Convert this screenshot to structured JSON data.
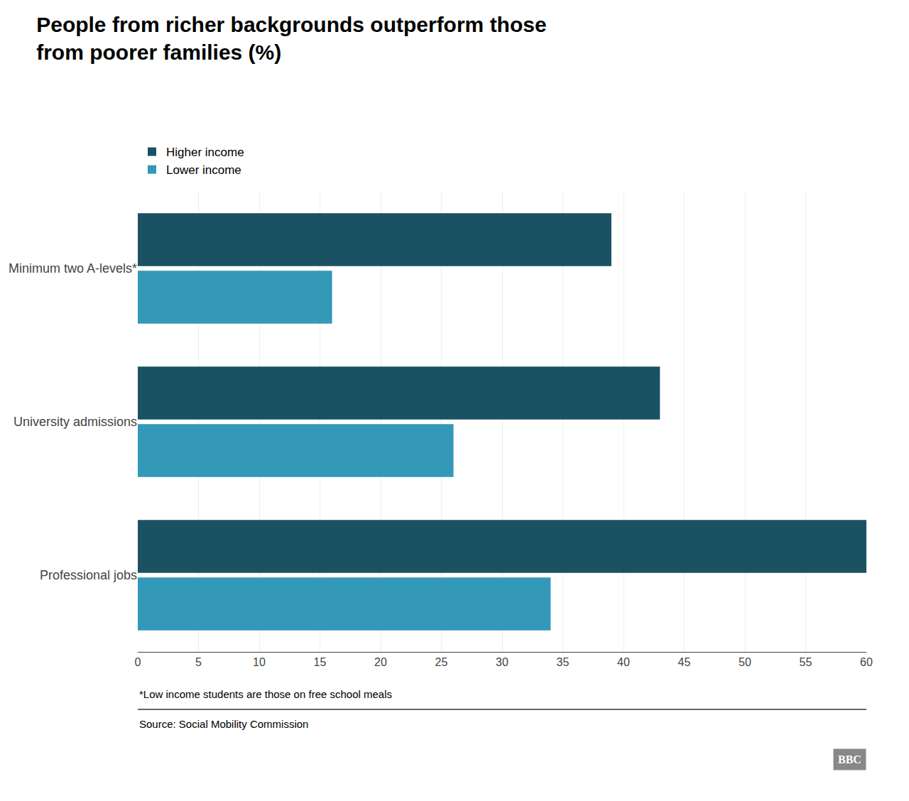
{
  "chart_data": {
    "type": "bar",
    "orientation": "horizontal",
    "title": "People from richer backgrounds outperform those\nfrom poorer families (%)",
    "categories": [
      "Minimum two A-levels*",
      "University admissions",
      "Professional jobs"
    ],
    "series": [
      {
        "name": "Higher income",
        "color": "#1a5263",
        "values": [
          39,
          43,
          60
        ]
      },
      {
        "name": "Lower income",
        "color": "#3498b8",
        "values": [
          16,
          26,
          34
        ]
      }
    ],
    "xlim": [
      0,
      60
    ],
    "xticks": [
      0,
      5,
      10,
      15,
      20,
      25,
      30,
      35,
      40,
      45,
      50,
      55,
      60
    ],
    "grid": true,
    "legend": "upper left",
    "annotations": [
      "*Low income students are those on free school meals",
      "Source: Social Mobility Commission",
      "BBC"
    ]
  }
}
